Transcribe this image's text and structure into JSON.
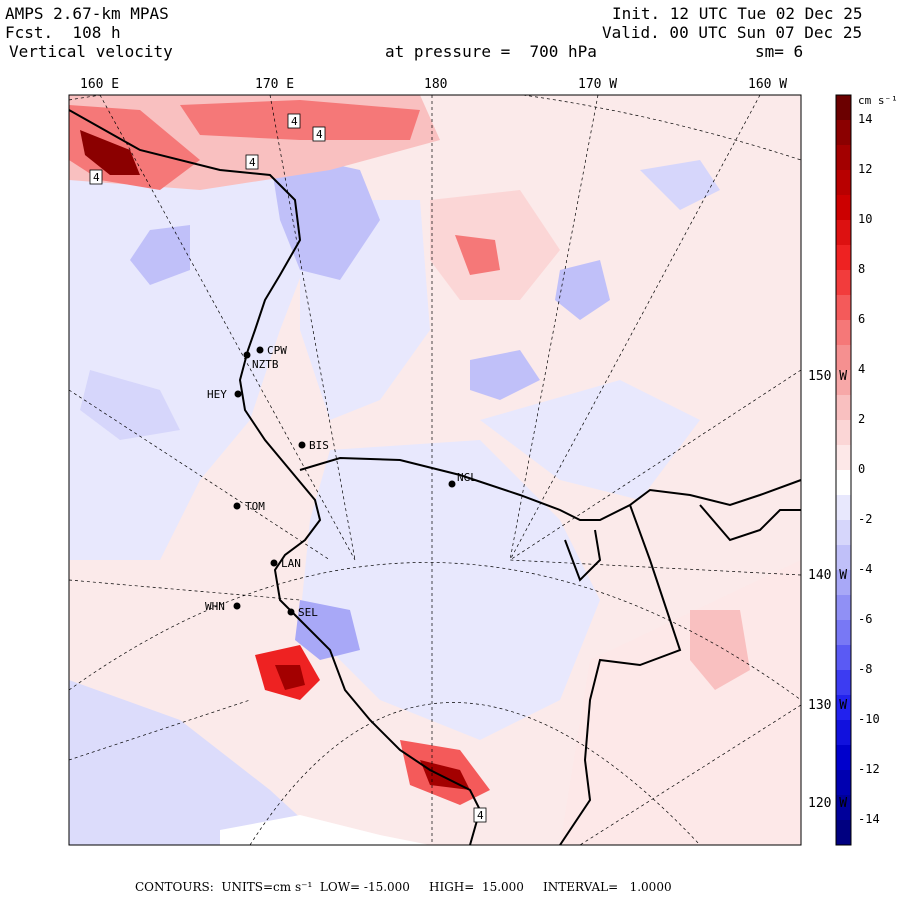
{
  "header": {
    "model": "AMPS 2.67-km MPAS",
    "forecast": "Fcst.  108 h",
    "field": "Vertical velocity",
    "init": "Init. 12 UTC Tue 02 Dec 25",
    "valid": "Valid. 00 UTC Sun 07 Dec 25",
    "pressure": "at pressure =  700 hPa",
    "smoothing": "sm= 6"
  },
  "longitude_labels": [
    "160 E",
    "170 E",
    "180",
    "170 W",
    "160 W"
  ],
  "latitude_labels": [
    "150 W",
    "140 W",
    "130 W",
    "120 W"
  ],
  "stations": [
    {
      "name": "CPW"
    },
    {
      "name": "NZTB"
    },
    {
      "name": "HEY"
    },
    {
      "name": "BIS"
    },
    {
      "name": "TOM"
    },
    {
      "name": "NGL"
    },
    {
      "name": "LAN"
    },
    {
      "name": "WHN"
    },
    {
      "name": "SEL"
    }
  ],
  "colorbar": {
    "units": "cm s⁻¹",
    "labels": [
      "14",
      "12",
      "10",
      "8",
      "6",
      "4",
      "2",
      "0",
      "-2",
      "-4",
      "-6",
      "-8",
      "-10",
      "-12",
      "-14"
    ],
    "colors_top_to_bottom": [
      "#6b0000",
      "#8b0000",
      "#a30000",
      "#b80000",
      "#cc0000",
      "#dd1111",
      "#ee2222",
      "#f23c3c",
      "#f45a5a",
      "#f57878",
      "#f59090",
      "#f7a8a8",
      "#f9c0c0",
      "#fbd6d6",
      "#fde8e8",
      "#ffffff",
      "#e8e8fd",
      "#d6d6fb",
      "#c0c0f9",
      "#a8a8f7",
      "#9090f5",
      "#7878f5",
      "#5a5af4",
      "#3c3cf2",
      "#2222ee",
      "#1111dd",
      "#0000cc",
      "#0000b0",
      "#00009a",
      "#000080"
    ]
  },
  "map_labels": [
    "4",
    "4",
    "4",
    "4",
    "4"
  ],
  "footer": {
    "contours": "CONTOURS:  UNITS=cm s⁻¹  LOW= -15.000     HIGH=  15.000     INTERVAL=   1.0000"
  }
}
